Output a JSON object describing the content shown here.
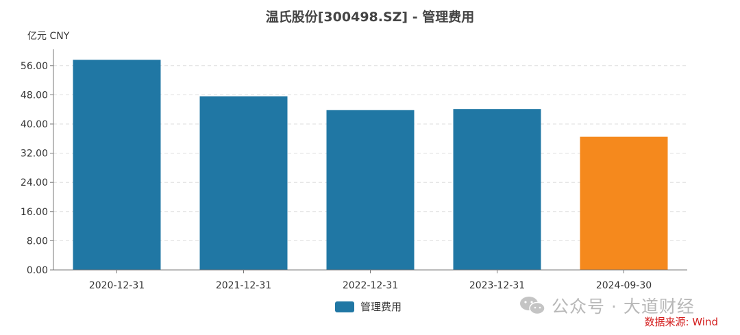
{
  "title": "温氏股份[300498.SZ] - 管理费用",
  "unit_label": "亿元  CNY",
  "legend_label": "管理费用",
  "watermark_text": "公众号 · 大道财经",
  "source_text": "数据来源: Wind",
  "colors": {
    "actual": "#2077a4",
    "latest": "#f5891d",
    "axis": "#777777",
    "grid": "#dddddd"
  },
  "chart_data": {
    "type": "bar",
    "categories": [
      "2020-12-31",
      "2021-12-31",
      "2022-12-31",
      "2023-12-31",
      "2024-09-30"
    ],
    "series": [
      {
        "name": "管理费用",
        "values": [
          57.6,
          47.6,
          43.8,
          44.1,
          36.5
        ]
      }
    ],
    "highlight_index": 4,
    "ylim": [
      0,
      58
    ],
    "yticks": [
      0,
      8,
      16,
      24,
      32,
      40,
      48,
      56
    ],
    "ytick_labels": [
      "0.00",
      "8.00",
      "16.00",
      "24.00",
      "32.00",
      "40.00",
      "48.00",
      "56.00"
    ],
    "grid": true,
    "legend_position": "bottom"
  }
}
